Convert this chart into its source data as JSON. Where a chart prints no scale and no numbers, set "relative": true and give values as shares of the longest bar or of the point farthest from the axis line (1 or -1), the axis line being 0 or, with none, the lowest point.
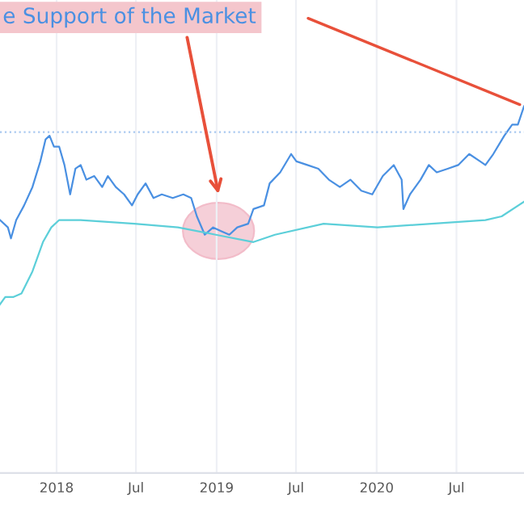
{
  "chart_data": {
    "type": "line",
    "relative": true,
    "grid": "x",
    "xlim": [
      "2017-08-25",
      "2020-12-02"
    ],
    "xticks": [
      {
        "value": "2018-01-01",
        "label": "2018"
      },
      {
        "value": "2018-07-01",
        "label": "Jul"
      },
      {
        "value": "2019-01-01",
        "label": "2019"
      },
      {
        "value": "2019-07-01",
        "label": "Jul"
      },
      {
        "value": "2020-01-01",
        "label": "2020"
      },
      {
        "value": "2020-07-01",
        "label": "Jul"
      }
    ],
    "annotations": [
      "e Support of the Market"
    ],
    "ref_lines": [
      {
        "axis": "y",
        "value": 0.93,
        "color": "#a9c8f0",
        "line_style": "dotted"
      }
    ],
    "series": [
      {
        "color": "#4a90e2",
        "x": [
          "2017-08-25",
          "2017-09-12",
          "2017-09-19",
          "2017-10-01",
          "2017-10-19",
          "2017-11-07",
          "2017-11-25",
          "2017-12-07",
          "2017-12-16",
          "2017-12-26",
          "2018-01-07",
          "2018-01-19",
          "2018-02-01",
          "2018-02-13",
          "2018-02-25",
          "2018-03-10",
          "2018-03-28",
          "2018-04-15",
          "2018-04-28",
          "2018-05-16",
          "2018-06-04",
          "2018-06-22",
          "2018-07-05",
          "2018-07-23",
          "2018-08-10",
          "2018-08-29",
          "2018-09-23",
          "2018-10-17",
          "2018-11-04",
          "2018-11-17",
          "2018-12-05",
          "2018-12-24",
          "2019-01-11",
          "2019-01-30",
          "2019-02-17",
          "2019-03-14",
          "2019-03-26",
          "2019-04-19",
          "2019-05-02",
          "2019-05-26",
          "2019-06-20",
          "2019-07-02",
          "2019-07-27",
          "2019-08-21",
          "2019-09-14",
          "2019-10-09",
          "2019-11-02",
          "2019-11-27",
          "2019-12-22",
          "2020-01-15",
          "2020-02-09",
          "2020-02-27",
          "2020-03-02",
          "2020-03-17",
          "2020-04-10",
          "2020-04-29",
          "2020-05-17",
          "2020-06-11",
          "2020-07-05",
          "2020-07-30",
          "2020-08-24",
          "2020-09-05",
          "2020-09-23",
          "2020-10-18",
          "2020-11-05",
          "2020-11-18",
          "2020-12-02"
        ],
        "values": [
          0.69,
          0.67,
          0.64,
          0.69,
          0.73,
          0.78,
          0.85,
          0.91,
          0.92,
          0.89,
          0.89,
          0.84,
          0.76,
          0.83,
          0.84,
          0.8,
          0.81,
          0.78,
          0.81,
          0.78,
          0.76,
          0.73,
          0.76,
          0.79,
          0.75,
          0.76,
          0.75,
          0.76,
          0.75,
          0.7,
          0.65,
          0.67,
          0.66,
          0.65,
          0.67,
          0.68,
          0.72,
          0.73,
          0.79,
          0.82,
          0.87,
          0.85,
          0.84,
          0.83,
          0.8,
          0.78,
          0.8,
          0.77,
          0.76,
          0.81,
          0.84,
          0.8,
          0.72,
          0.76,
          0.8,
          0.84,
          0.82,
          0.83,
          0.84,
          0.87,
          0.85,
          0.84,
          0.87,
          0.92,
          0.95,
          0.95,
          1.0
        ]
      },
      {
        "color": "#5ccfd9",
        "x": [
          "2017-08-25",
          "2017-09-06",
          "2017-09-24",
          "2017-10-13",
          "2017-11-07",
          "2017-12-01",
          "2017-12-20",
          "2018-01-07",
          "2018-02-25",
          "2018-06-28",
          "2018-10-05",
          "2018-12-30",
          "2019-03-26",
          "2019-05-14",
          "2019-09-02",
          "2020-01-03",
          "2020-05-05",
          "2020-09-05",
          "2020-10-12",
          "2020-12-02"
        ],
        "values": [
          0.46,
          0.48,
          0.48,
          0.49,
          0.55,
          0.63,
          0.67,
          0.69,
          0.69,
          0.68,
          0.67,
          0.65,
          0.63,
          0.65,
          0.68,
          0.67,
          0.68,
          0.69,
          0.7,
          0.74
        ]
      }
    ]
  }
}
